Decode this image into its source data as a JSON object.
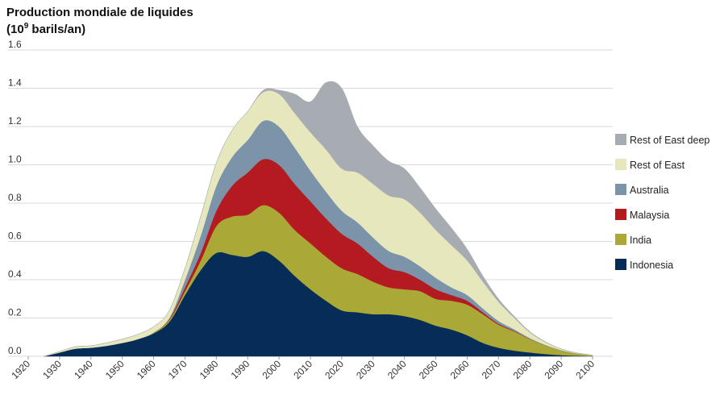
{
  "chart_data": {
    "type": "area",
    "stacked": true,
    "title": "Production mondiale de liquides",
    "ylabel_prefix": "(10",
    "ylabel_exp": "9",
    "ylabel_suffix": " barils/an)",
    "xlim": [
      1920,
      2100
    ],
    "ylim": [
      0,
      1.6
    ],
    "yticks": [
      "0.0",
      "0.2",
      "0.4",
      "0.6",
      "0.8",
      "1.0",
      "1.2",
      "1.4",
      "1.6"
    ],
    "xticks": [
      "1920",
      "1930",
      "1940",
      "1950",
      "1960",
      "1970",
      "1980",
      "1990",
      "2000",
      "2010",
      "2020",
      "2030",
      "2040",
      "2050",
      "2060",
      "2070",
      "2080",
      "2090",
      "2100"
    ],
    "grid": "horizontal",
    "legend_position": "right",
    "x": [
      1925,
      1930,
      1935,
      1940,
      1945,
      1950,
      1955,
      1960,
      1965,
      1970,
      1975,
      1980,
      1985,
      1990,
      1995,
      2000,
      2005,
      2010,
      2015,
      2020,
      2025,
      2030,
      2035,
      2040,
      2045,
      2050,
      2055,
      2060,
      2065,
      2070,
      2075,
      2080,
      2085,
      2090,
      2095,
      2100
    ],
    "series": [
      {
        "name": "Indonesia",
        "color": "#062d57",
        "values": [
          0,
          0.02,
          0.04,
          0.045,
          0.055,
          0.07,
          0.09,
          0.12,
          0.18,
          0.32,
          0.45,
          0.54,
          0.53,
          0.52,
          0.55,
          0.5,
          0.42,
          0.35,
          0.29,
          0.24,
          0.23,
          0.22,
          0.22,
          0.21,
          0.19,
          0.16,
          0.14,
          0.11,
          0.07,
          0.045,
          0.03,
          0.02,
          0.012,
          0.006,
          0.003,
          0.001
        ]
      },
      {
        "name": "India",
        "color": "#aaa937",
        "values": [
          0,
          0,
          0,
          0,
          0,
          0,
          0,
          0.005,
          0.01,
          0.02,
          0.05,
          0.14,
          0.2,
          0.22,
          0.24,
          0.25,
          0.24,
          0.24,
          0.23,
          0.22,
          0.2,
          0.17,
          0.14,
          0.14,
          0.15,
          0.14,
          0.15,
          0.16,
          0.15,
          0.12,
          0.1,
          0.07,
          0.045,
          0.025,
          0.012,
          0.004
        ]
      },
      {
        "name": "Malaysia",
        "color": "#b31b20",
        "values": [
          0,
          0,
          0,
          0,
          0,
          0,
          0,
          0,
          0.005,
          0.02,
          0.04,
          0.08,
          0.16,
          0.22,
          0.24,
          0.25,
          0.24,
          0.22,
          0.2,
          0.18,
          0.16,
          0.13,
          0.1,
          0.09,
          0.06,
          0.05,
          0.03,
          0.02,
          0.01,
          0.005,
          0.003,
          0.001,
          0,
          0,
          0,
          0
        ]
      },
      {
        "name": "Australia",
        "color": "#7b94a9",
        "values": [
          0,
          0,
          0,
          0,
          0,
          0,
          0,
          0,
          0.005,
          0.04,
          0.09,
          0.13,
          0.15,
          0.17,
          0.2,
          0.2,
          0.19,
          0.16,
          0.14,
          0.12,
          0.11,
          0.1,
          0.09,
          0.08,
          0.07,
          0.06,
          0.04,
          0.03,
          0.02,
          0.015,
          0.008,
          0.004,
          0.002,
          0.001,
          0,
          0
        ]
      },
      {
        "name": "Rest of East",
        "color": "#e7e7bd",
        "values": [
          0,
          0.005,
          0.01,
          0.01,
          0.015,
          0.02,
          0.025,
          0.03,
          0.04,
          0.06,
          0.1,
          0.12,
          0.14,
          0.15,
          0.15,
          0.17,
          0.18,
          0.2,
          0.22,
          0.22,
          0.26,
          0.28,
          0.29,
          0.3,
          0.28,
          0.25,
          0.22,
          0.18,
          0.14,
          0.1,
          0.06,
          0.03,
          0.015,
          0.006,
          0.003,
          0.001
        ]
      },
      {
        "name": "Rest of East deep",
        "color": "#a6acb1",
        "values": [
          0,
          0,
          0,
          0,
          0,
          0,
          0,
          0,
          0,
          0,
          0,
          0,
          0,
          0,
          0.01,
          0.02,
          0.1,
          0.16,
          0.35,
          0.42,
          0.24,
          0.2,
          0.18,
          0.16,
          0.13,
          0.11,
          0.09,
          0.06,
          0.03,
          0.015,
          0.008,
          0.004,
          0.002,
          0.001,
          0,
          0
        ]
      }
    ]
  }
}
